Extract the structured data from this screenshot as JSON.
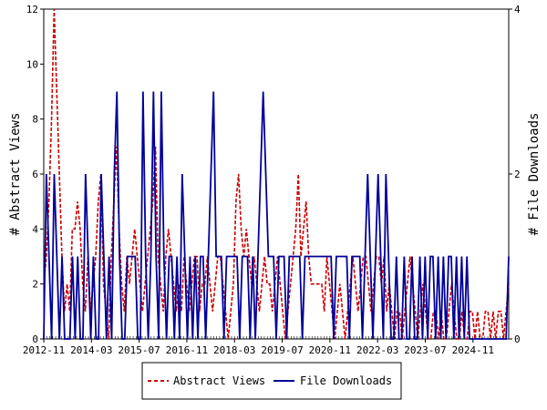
{
  "chart_data": {
    "type": "line",
    "ylabel_left": "# Abstract Views",
    "ylabel_right": "# File Downloads",
    "ylim_left": [
      0,
      12
    ],
    "ylim_right": [
      0,
      4
    ],
    "yticks_left": [
      "0",
      "2",
      "4",
      "6",
      "8",
      "10",
      "12"
    ],
    "yticks_right": [
      "0",
      "2",
      "4"
    ],
    "xticks": [
      "2012-11",
      "2014-03",
      "2015-07",
      "2016-11",
      "2018-03",
      "2019-07",
      "2020-11",
      "2022-03",
      "2023-07",
      "2024-11"
    ],
    "x_range": [
      "2012-11",
      "2025-11"
    ],
    "legend": {
      "placement": "bottom-center",
      "entries": [
        {
          "label": "Abstract Views",
          "color": "#cc0000",
          "style": "dashed"
        },
        {
          "label": "File Downloads",
          "color": "#000099",
          "style": "solid"
        }
      ]
    },
    "series": [
      {
        "name": "Abstract Views",
        "axis": "left",
        "color": "#cc0000",
        "values": [
          2,
          3,
          5,
          8,
          12,
          9,
          6,
          3,
          1,
          2,
          1,
          4,
          4,
          5,
          4,
          2,
          1,
          3,
          1,
          2,
          3,
          5,
          6,
          2,
          1,
          0,
          3,
          5,
          7,
          4,
          2,
          1,
          3,
          2,
          3,
          4,
          3,
          2,
          1,
          2,
          3,
          4,
          5,
          7,
          3,
          2,
          1,
          3,
          4,
          3,
          2,
          1,
          2,
          1,
          3,
          2,
          1,
          2,
          3,
          3,
          1,
          2,
          2,
          3,
          2,
          1,
          2,
          3,
          3,
          2,
          1,
          0,
          1,
          2,
          5,
          6,
          4,
          3,
          4,
          3,
          2,
          3,
          2,
          1,
          2,
          3,
          2,
          2,
          1,
          2,
          3,
          2,
          1,
          0,
          1,
          2,
          3,
          4,
          6,
          3,
          4,
          5,
          3,
          2,
          2,
          2,
          2,
          2,
          1,
          3,
          2,
          1,
          0,
          1,
          2,
          1,
          0,
          1,
          2,
          3,
          2,
          1,
          2,
          3,
          3,
          2,
          1,
          2,
          3,
          3,
          2,
          3,
          1,
          2,
          1,
          0,
          1,
          1,
          0,
          1,
          2,
          3,
          2,
          1,
          0,
          1,
          2,
          1,
          0,
          0,
          1,
          1,
          0,
          1,
          0,
          0,
          1,
          2,
          1,
          0,
          0,
          1,
          0,
          0,
          1,
          1,
          0,
          1,
          0,
          0,
          1,
          1,
          0,
          1,
          0,
          1,
          1,
          0,
          1,
          2
        ]
      },
      {
        "name": "File Downloads",
        "axis": "right",
        "color": "#000099",
        "values": [
          0,
          2,
          1,
          0,
          2,
          1,
          0,
          1,
          0,
          0,
          0,
          1,
          0,
          1,
          0,
          0,
          2,
          1,
          0,
          1,
          0,
          0,
          2,
          1,
          0,
          1,
          0,
          2,
          3,
          1,
          0,
          0,
          1,
          1,
          1,
          1,
          0,
          0,
          3,
          1,
          0,
          1,
          3,
          1,
          0,
          3,
          1,
          0,
          1,
          1,
          0,
          1,
          0,
          2,
          1,
          0,
          1,
          0,
          1,
          0,
          1,
          1,
          0,
          1,
          2,
          3,
          1,
          1,
          1,
          0,
          1,
          1,
          1,
          1,
          1,
          0,
          1,
          1,
          1,
          0,
          1,
          0,
          1,
          2,
          3,
          2,
          1,
          1,
          1,
          0,
          1,
          1,
          1,
          0,
          1,
          1,
          1,
          1,
          1,
          0,
          1,
          1,
          1,
          1,
          1,
          1,
          1,
          1,
          1,
          1,
          1,
          0,
          1,
          1,
          1,
          1,
          1,
          0,
          1,
          1,
          1,
          1,
          0,
          1,
          2,
          1,
          0,
          1,
          2,
          1,
          0,
          2,
          1,
          0,
          0,
          1,
          0,
          0,
          1,
          0,
          0,
          1,
          0,
          0,
          1,
          0,
          1,
          0,
          1,
          1,
          0,
          1,
          0,
          1,
          0,
          1,
          1,
          0,
          1,
          0,
          1,
          0,
          1,
          0,
          0,
          0,
          0,
          0,
          0,
          0,
          0,
          0,
          0,
          0,
          0,
          0,
          0,
          0,
          1
        ]
      }
    ]
  }
}
